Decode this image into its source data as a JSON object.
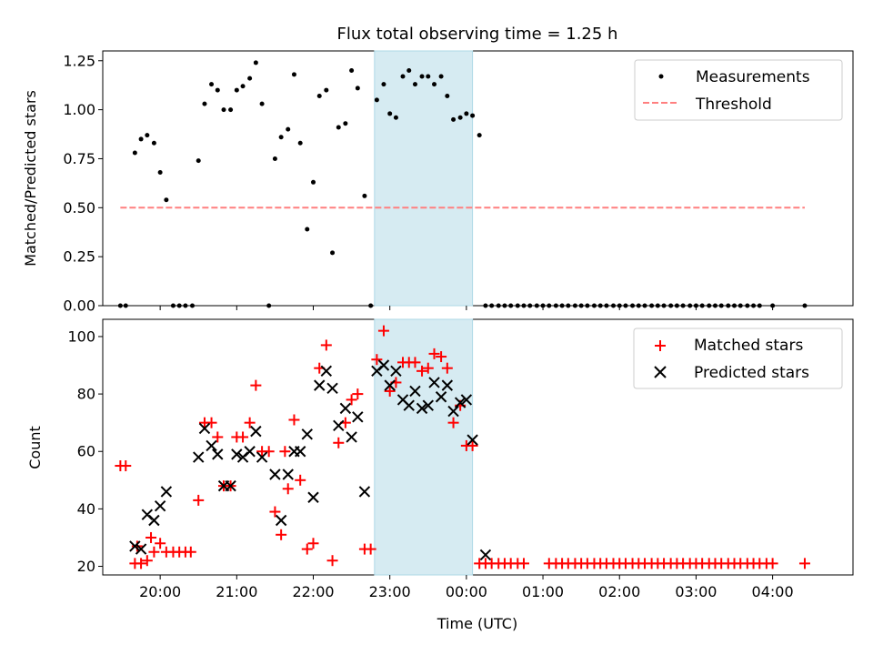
{
  "chart_data": [
    {
      "type": "scatter",
      "title": "Flux total observing time = 1.25 h",
      "xlabel": "",
      "ylabel": "Matched/Predicted stars",
      "xlim": [
        -0.75,
        9.05
      ],
      "ylim": [
        0,
        1.3
      ],
      "yticks": [
        0,
        0.25,
        0.5,
        0.75,
        1.0,
        1.25
      ],
      "ytick_labels": [
        "0.00",
        "0.25",
        "0.50",
        "0.75",
        "1.00",
        "1.25"
      ],
      "highlight_span": [
        2.8,
        4.08
      ],
      "series": [
        {
          "name": "Measurements",
          "color": "#000000",
          "marker": "dot",
          "x": [
            -0.52,
            -0.45,
            -0.33,
            -0.25,
            -0.17,
            -0.08,
            0.0,
            0.08,
            0.17,
            0.25,
            0.33,
            0.42,
            0.5,
            0.58,
            0.67,
            0.75,
            0.83,
            0.92,
            1.0,
            1.08,
            1.17,
            1.25,
            1.33,
            1.42,
            1.5,
            1.58,
            1.67,
            1.75,
            1.83,
            1.92,
            2.0,
            2.08,
            2.17,
            2.25,
            2.33,
            2.42,
            2.5,
            2.58,
            2.67,
            2.75,
            2.83,
            2.92,
            3.0,
            3.08,
            3.17,
            3.25,
            3.33,
            3.42,
            3.5,
            3.58,
            3.67,
            3.75,
            3.83,
            3.92,
            4.0,
            4.08,
            4.17,
            4.25,
            4.33,
            4.42,
            4.5,
            4.58,
            4.67,
            4.75,
            4.83,
            4.92,
            5.0,
            5.08,
            5.17,
            5.25,
            5.33,
            5.42,
            5.5,
            5.58,
            5.67,
            5.75,
            5.83,
            5.92,
            6.0,
            6.08,
            6.17,
            6.25,
            6.33,
            6.42,
            6.5,
            6.58,
            6.67,
            6.75,
            6.83,
            6.92,
            7.0,
            7.08,
            7.17,
            7.25,
            7.33,
            7.42,
            7.5,
            7.58,
            7.67,
            7.75,
            7.83,
            8.0,
            8.42
          ],
          "y": [
            0,
            0,
            0.78,
            0.85,
            0.87,
            0.83,
            0.68,
            0.54,
            0,
            0,
            0,
            0,
            0.74,
            1.03,
            1.13,
            1.1,
            1.0,
            1.0,
            1.1,
            1.12,
            1.16,
            1.24,
            1.03,
            0,
            0.75,
            0.86,
            0.9,
            1.18,
            0.83,
            0.39,
            0.63,
            1.07,
            1.1,
            0.27,
            0.91,
            0.93,
            1.2,
            1.11,
            0.56,
            0,
            1.05,
            1.13,
            0.98,
            0.96,
            1.17,
            1.2,
            1.13,
            1.17,
            1.17,
            1.13,
            1.17,
            1.07,
            0.95,
            0.96,
            0.98,
            0.97,
            0.87,
            0,
            0,
            0,
            0,
            0,
            0,
            0,
            0,
            0,
            0,
            0,
            0,
            0,
            0,
            0,
            0,
            0,
            0,
            0,
            0,
            0,
            0,
            0,
            0,
            0,
            0,
            0,
            0,
            0,
            0,
            0,
            0,
            0,
            0,
            0,
            0,
            0,
            0,
            0,
            0,
            0,
            0,
            0,
            0,
            0,
            0
          ]
        },
        {
          "name": "Threshold",
          "color": "#ff7f7f",
          "style": "dashed",
          "x": [
            -0.52,
            8.42
          ],
          "y": [
            0.5,
            0.5
          ]
        }
      ]
    },
    {
      "type": "scatter",
      "title": "",
      "xlabel": "Time (UTC)",
      "ylabel": "Count",
      "xlim": [
        -0.75,
        9.05
      ],
      "ylim": [
        17,
        106
      ],
      "yticks": [
        20,
        40,
        60,
        80,
        100
      ],
      "ytick_labels": [
        "20",
        "40",
        "60",
        "80",
        "100"
      ],
      "xticks": [
        0,
        1,
        2,
        3,
        4,
        5,
        6,
        7,
        8
      ],
      "xtick_labels": [
        "20:00",
        "21:00",
        "22:00",
        "23:00",
        "00:00",
        "01:00",
        "02:00",
        "03:00",
        "04:00"
      ],
      "highlight_span": [
        2.8,
        4.08
      ],
      "series": [
        {
          "name": "Matched stars",
          "color": "#ff0000",
          "marker": "plus",
          "x": [
            -0.52,
            -0.45,
            -0.33,
            -0.3,
            -0.25,
            -0.17,
            -0.12,
            -0.08,
            0.0,
            0.08,
            0.17,
            0.25,
            0.33,
            0.4,
            0.5,
            0.58,
            0.67,
            0.75,
            0.83,
            0.92,
            1.0,
            1.08,
            1.17,
            1.25,
            1.33,
            1.42,
            1.5,
            1.58,
            1.63,
            1.67,
            1.75,
            1.83,
            1.92,
            2.0,
            2.08,
            2.17,
            2.25,
            2.33,
            2.42,
            2.5,
            2.58,
            2.67,
            2.75,
            2.83,
            2.92,
            3.0,
            3.08,
            3.17,
            3.25,
            3.33,
            3.42,
            3.5,
            3.58,
            3.67,
            3.75,
            3.83,
            3.92,
            4.0,
            4.08,
            4.17,
            4.25,
            4.33,
            4.42,
            4.5,
            4.58,
            4.67,
            4.75,
            5.08,
            5.17,
            5.25,
            5.33,
            5.42,
            5.5,
            5.58,
            5.67,
            5.75,
            5.83,
            5.92,
            6.0,
            6.08,
            6.17,
            6.25,
            6.33,
            6.42,
            6.5,
            6.58,
            6.67,
            6.75,
            6.83,
            6.92,
            7.0,
            7.08,
            7.17,
            7.25,
            7.33,
            7.42,
            7.5,
            7.58,
            7.67,
            7.75,
            7.83,
            7.92,
            8.0,
            8.42
          ],
          "y": [
            55,
            55,
            21,
            27,
            21,
            22,
            30,
            25,
            28,
            25,
            25,
            25,
            25,
            25,
            43,
            70,
            70,
            65,
            48,
            48,
            65,
            65,
            70,
            83,
            60,
            60,
            39,
            31,
            60,
            47,
            71,
            50,
            26,
            28,
            89,
            97,
            22,
            63,
            70,
            78,
            80,
            26,
            26,
            92,
            102,
            81,
            84,
            91,
            91,
            91,
            88,
            89,
            94,
            93,
            89,
            70,
            76,
            62,
            62,
            21,
            21,
            21,
            21,
            21,
            21,
            21,
            21,
            21,
            21,
            21,
            21,
            21,
            21,
            21,
            21,
            21,
            21,
            21,
            21,
            21,
            21,
            21,
            21,
            21,
            21,
            21,
            21,
            21,
            21,
            21,
            21,
            21,
            21,
            21,
            21,
            21,
            21,
            21,
            21,
            21,
            21,
            21,
            21,
            21
          ]
        },
        {
          "name": "Predicted stars",
          "color": "#000000",
          "marker": "x",
          "x": [
            -0.33,
            -0.25,
            -0.17,
            -0.08,
            0.0,
            0.08,
            0.5,
            0.58,
            0.67,
            0.75,
            0.83,
            0.92,
            1.0,
            1.08,
            1.17,
            1.25,
            1.33,
            1.5,
            1.58,
            1.67,
            1.75,
            1.83,
            1.92,
            2.0,
            2.08,
            2.17,
            2.25,
            2.33,
            2.42,
            2.5,
            2.58,
            2.67,
            2.83,
            2.92,
            3.0,
            3.08,
            3.17,
            3.25,
            3.33,
            3.42,
            3.5,
            3.58,
            3.67,
            3.75,
            3.83,
            3.92,
            4.0,
            4.08,
            4.25
          ],
          "y": [
            27,
            26,
            38,
            36,
            41,
            46,
            58,
            68,
            62,
            59,
            48,
            48,
            59,
            58,
            60,
            67,
            58,
            52,
            36,
            52,
            60,
            60,
            66,
            44,
            83,
            88,
            82,
            69,
            75,
            65,
            72,
            46,
            88,
            90,
            83,
            88,
            78,
            76,
            81,
            75,
            76,
            84,
            79,
            83,
            74,
            77,
            78,
            64,
            24
          ]
        }
      ]
    }
  ],
  "legends": [
    {
      "items": [
        "Measurements",
        "Threshold"
      ]
    },
    {
      "items": [
        "Matched stars",
        "Predicted stars"
      ]
    }
  ]
}
